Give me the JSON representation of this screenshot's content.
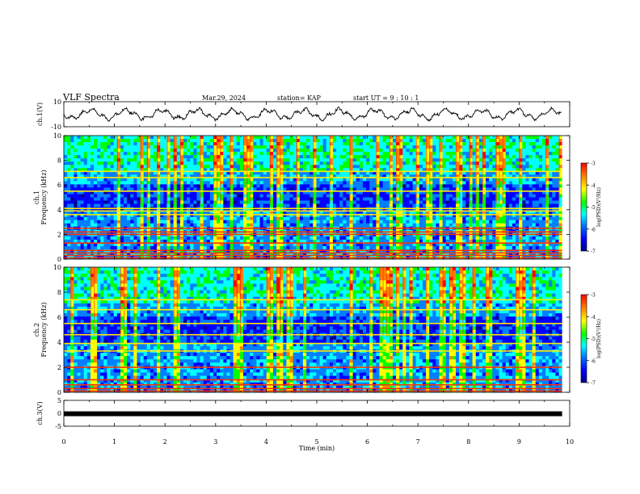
{
  "header": {
    "title": "VLF Spectra",
    "date": "Mar.29, 2024",
    "station": "station= KAP",
    "start_ut": "start  UT =   9 : 10 : 1"
  },
  "chart_data": [
    {
      "type": "line",
      "panel": "ch1-waveform",
      "ylabel": "ch.1(V)",
      "ylim": [
        -10,
        10
      ],
      "yticks": [
        "10",
        "-10"
      ],
      "xlim": [
        0,
        10
      ]
    },
    {
      "type": "heatmap",
      "panel": "ch1-spectrogram",
      "ylabel": "ch.1",
      "ylabel2": "Frequency (kHz)",
      "ylim": [
        0,
        10
      ],
      "yticks": [
        "0",
        "2",
        "4",
        "6",
        "8",
        "10"
      ],
      "xlim": [
        0,
        10
      ],
      "data_end_min": 9.85,
      "bands_khz": [
        0.1,
        0.3,
        0.5,
        0.7,
        1.3,
        2.0,
        2.2,
        2.5,
        3.6,
        3.9,
        4.1,
        5.5,
        6.6,
        7.1
      ],
      "colorbar": {
        "label": "log(PSD)(V²/Hz)",
        "ticks": [
          "-3",
          "-4",
          "-5",
          "-6",
          "-7"
        ],
        "range": [
          -7,
          -3
        ]
      }
    },
    {
      "type": "heatmap",
      "panel": "ch2-spectrogram",
      "ylabel": "ch.2",
      "ylabel2": "Frequency (kHz)",
      "ylim": [
        0,
        10
      ],
      "yticks": [
        "0",
        "2",
        "4",
        "6",
        "8",
        "10"
      ],
      "xlim": [
        0,
        10
      ],
      "data_end_min": 9.85,
      "bands_khz": [
        0.1,
        0.3,
        0.6,
        1.0,
        2.0,
        3.3,
        3.9,
        4.6,
        5.5,
        6.6,
        7.4
      ],
      "colorbar": {
        "label": "log(PSD)(V²/Hz)",
        "ticks": [
          "-3",
          "-4",
          "-5",
          "-6",
          "-7"
        ],
        "range": [
          -7,
          -3
        ]
      }
    },
    {
      "type": "line",
      "panel": "ch3-waveform",
      "ylabel": "ch.3(V)",
      "ylim": [
        -5,
        5
      ],
      "yticks": [
        "5",
        "0",
        "-5"
      ],
      "level": -0.2,
      "xlim": [
        0,
        10
      ]
    }
  ],
  "xaxis": {
    "label": "Time (min)",
    "ticks": [
      "0",
      "1",
      "2",
      "3",
      "4",
      "5",
      "6",
      "7",
      "8",
      "9",
      "10"
    ]
  },
  "colors": {
    "scale": [
      "#00008b",
      "#0000ff",
      "#0080ff",
      "#00ffff",
      "#00ff00",
      "#ffff00",
      "#ff8000",
      "#ff0000"
    ]
  }
}
